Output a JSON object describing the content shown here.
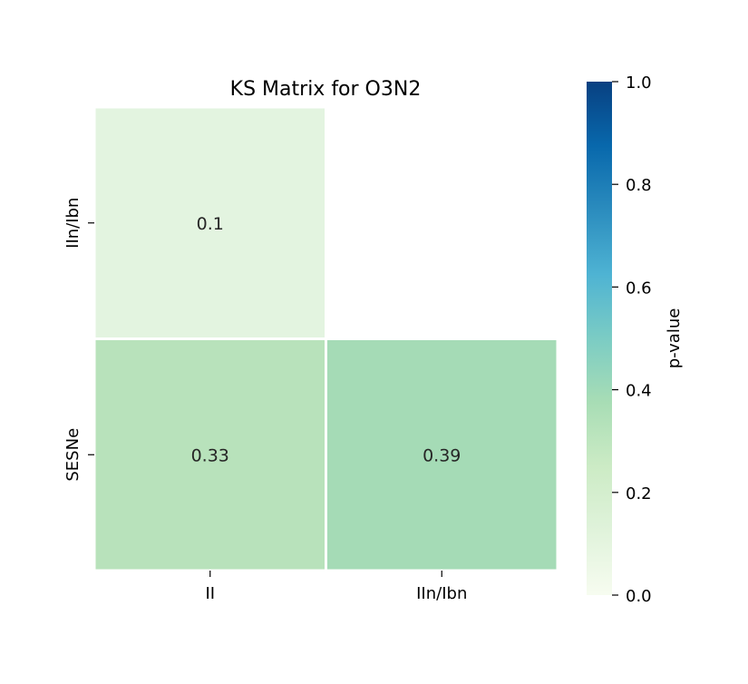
{
  "chart_data": {
    "type": "heatmap",
    "title": "KS Matrix for O3N2",
    "x_categories": [
      "II",
      "IIn/Ibn"
    ],
    "y_categories": [
      "IIn/Ibn",
      "SESNe"
    ],
    "cells": [
      {
        "row": 0,
        "col": 0,
        "value": 0.1,
        "label": "0.1",
        "color": "#e3f4e0"
      },
      {
        "row": 0,
        "col": 1,
        "value": null,
        "label": "",
        "color": "#ffffff"
      },
      {
        "row": 1,
        "col": 0,
        "value": 0.33,
        "label": "0.33",
        "color": "#b8e2bb"
      },
      {
        "row": 1,
        "col": 1,
        "value": 0.39,
        "label": "0.39",
        "color": "#a5dbb6"
      }
    ],
    "masked": "upper-triangle",
    "colorbar": {
      "label": "p-value",
      "range": [
        0.0,
        1.0
      ],
      "ticks": [
        "0.0",
        "0.2",
        "0.4",
        "0.6",
        "0.8",
        "1.0"
      ],
      "colormap": "GnBu",
      "stops": [
        "#f7fcf0",
        "#e0f3db",
        "#ccebc5",
        "#a8ddb5",
        "#7bccc4",
        "#4eb3d3",
        "#2b8cbe",
        "#0868ac",
        "#084081"
      ]
    },
    "xlabel": "",
    "ylabel": ""
  }
}
